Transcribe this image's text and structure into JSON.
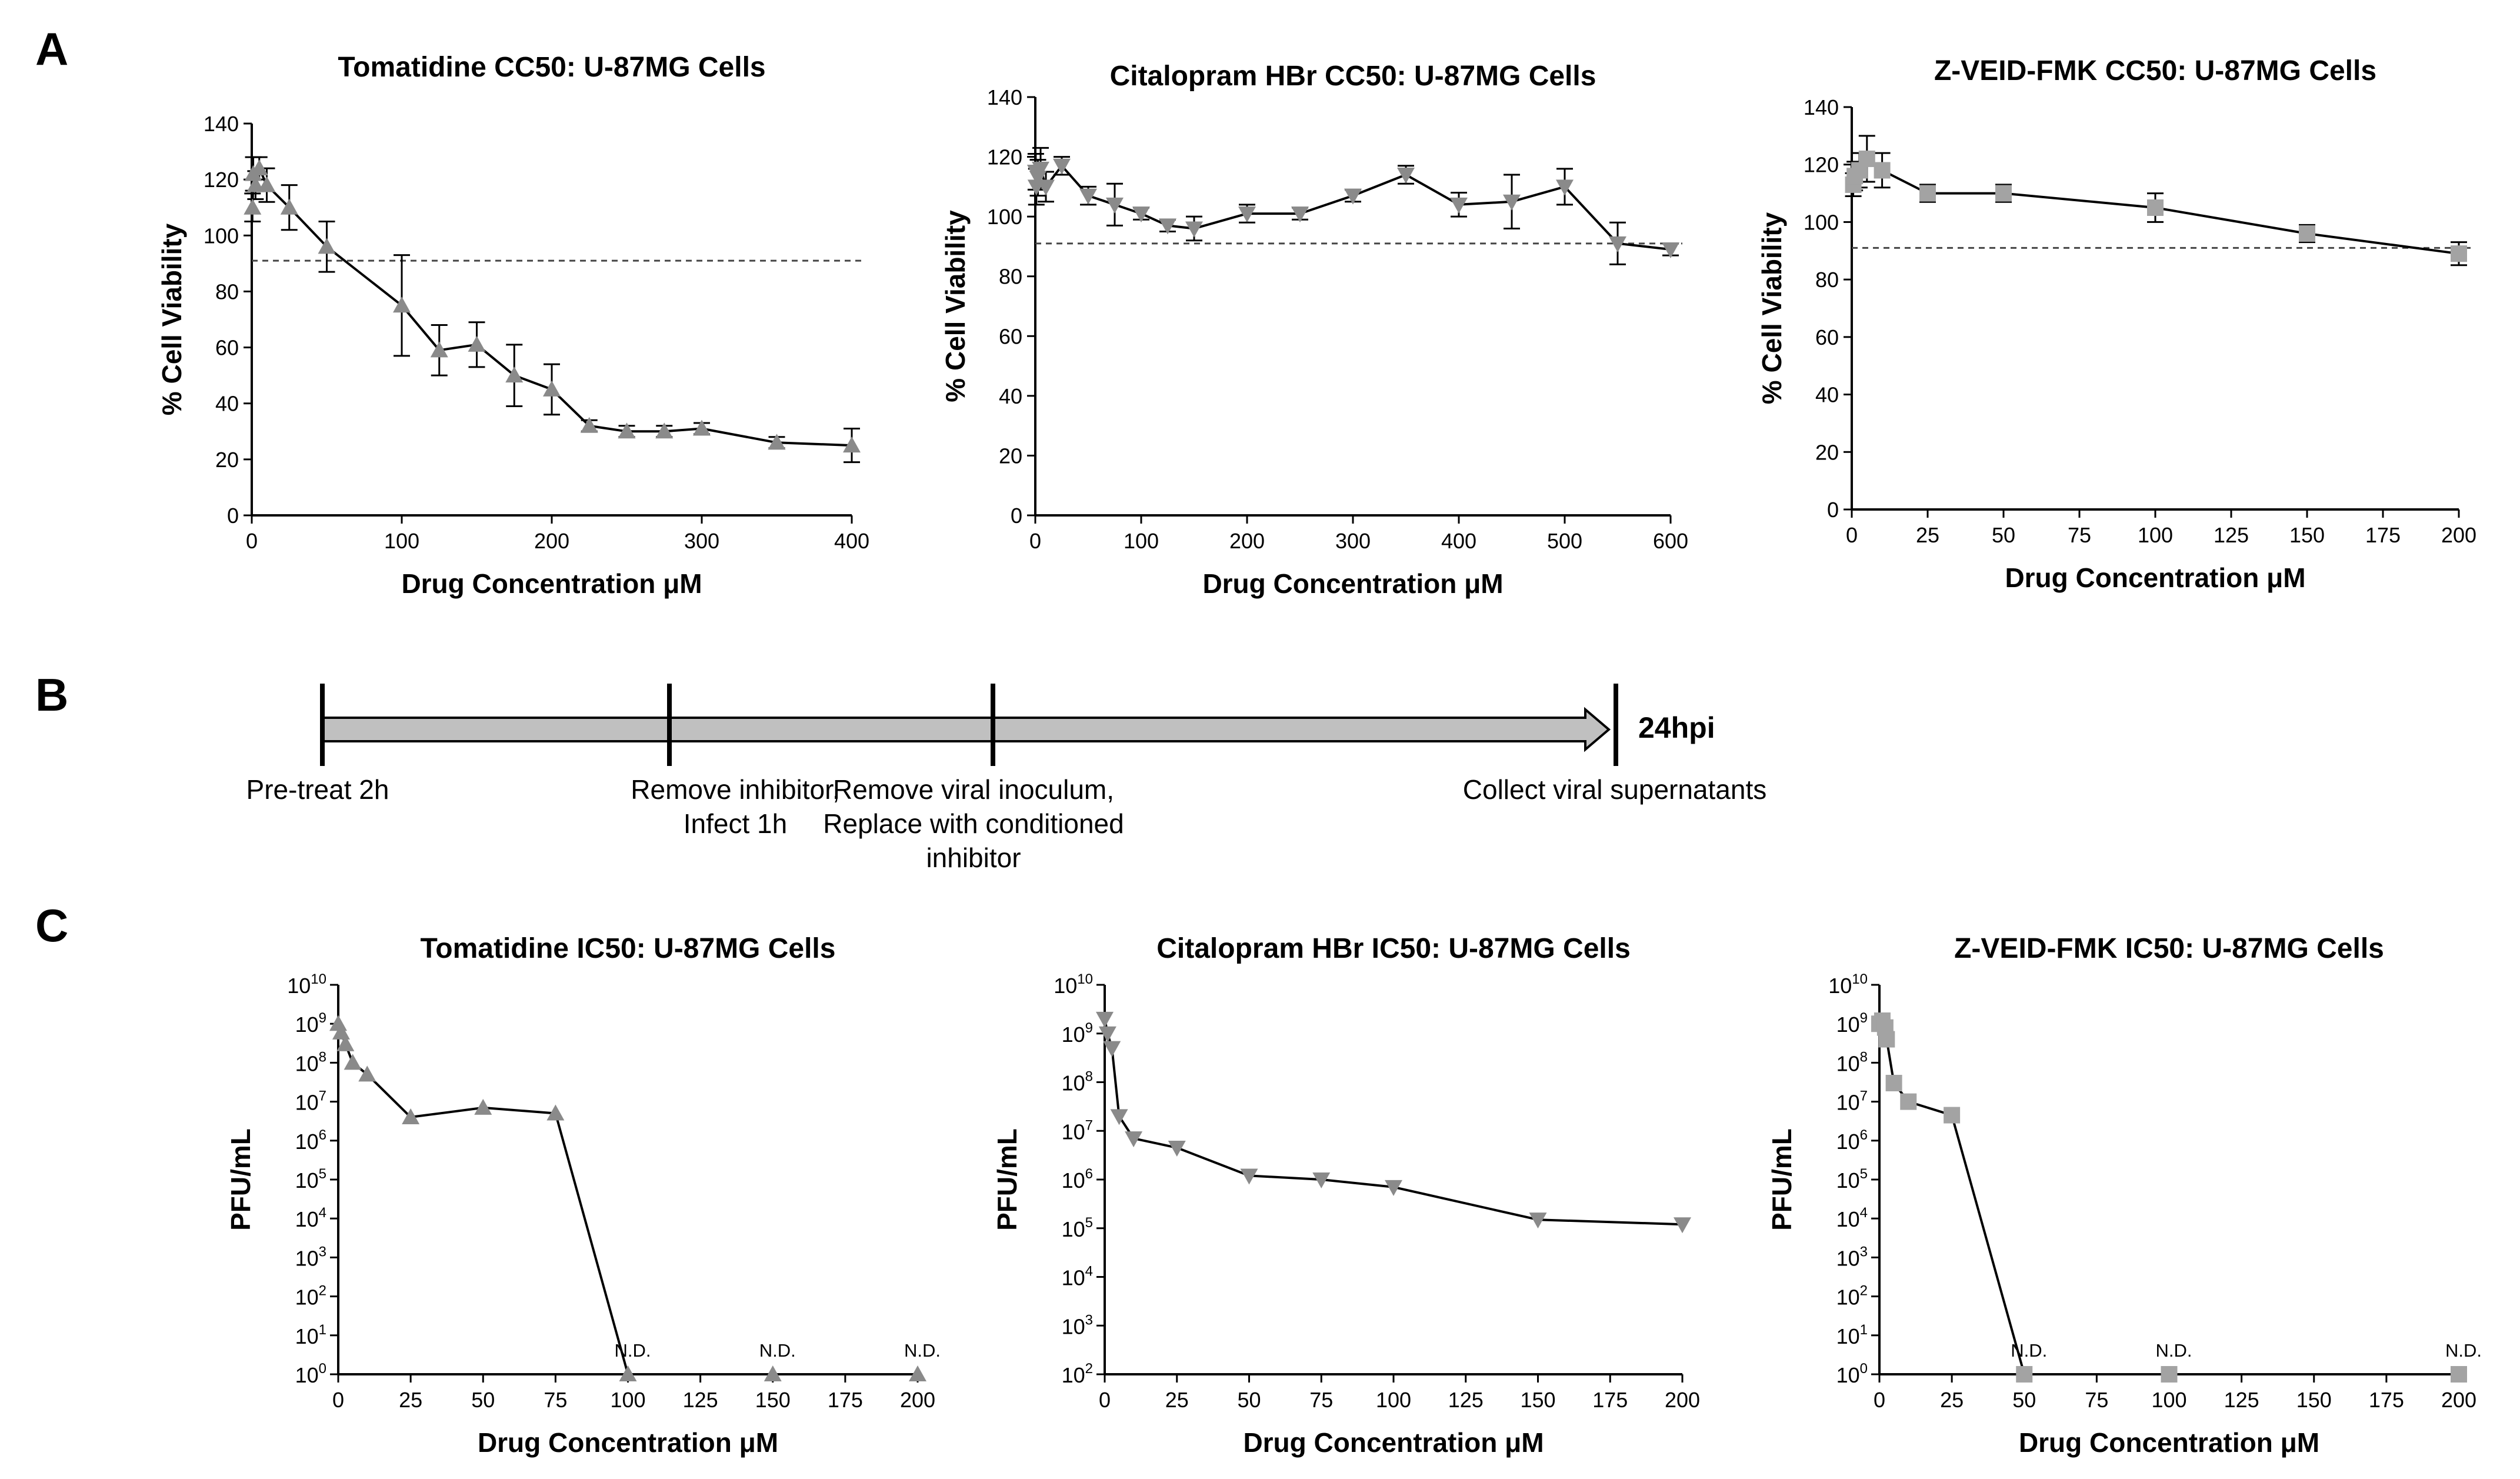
{
  "panels": {
    "a": "A",
    "b": "B",
    "c": "C"
  },
  "colors": {
    "marker": "#8a8a8a",
    "marker_light": "#a3a3a3",
    "line": "#000000",
    "threshold": "#444444",
    "arrow_fill": "#c0c0c0"
  },
  "timeline": {
    "end_label": "24hpi",
    "steps": [
      {
        "lines": [
          "Pre-treat 2h"
        ]
      },
      {
        "lines": [
          "Remove inhibitor,",
          "Infect 1h"
        ]
      },
      {
        "lines": [
          "Remove viral inoculum,",
          "Replace with conditioned",
          "inhibitor"
        ]
      },
      {
        "lines": [
          "Collect viral supernatants"
        ]
      }
    ]
  },
  "chart_data": [
    {
      "type": "line",
      "title": "Tomatidine CC50: U-87MG Cells",
      "xlabel": "Drug Concentration μM",
      "ylabel": "% Cell Viability",
      "xlim": [
        0,
        400
      ],
      "ylim": [
        0,
        140
      ],
      "xticks": [
        0,
        100,
        200,
        300,
        400
      ],
      "yticks": [
        0,
        20,
        40,
        60,
        80,
        100,
        120,
        140
      ],
      "marker": "triangle-up",
      "threshold": 91,
      "x": [
        0.5,
        1,
        2.5,
        5,
        10,
        25,
        50,
        100,
        125,
        150,
        175,
        200,
        225,
        250,
        275,
        300,
        350,
        400
      ],
      "y": [
        110,
        122,
        118,
        124,
        118,
        110,
        96,
        75,
        59,
        61,
        50,
        45,
        32,
        30,
        30,
        31,
        26,
        25
      ],
      "error": [
        5,
        6,
        5,
        4,
        6,
        8,
        9,
        18,
        9,
        8,
        11,
        9,
        2,
        2,
        2,
        2,
        2,
        6
      ]
    },
    {
      "type": "line",
      "title": "Citalopram HBr CC50: U-87MG Cells",
      "xlabel": "Drug Concentration μM",
      "ylabel": "% Cell Viability",
      "xlim": [
        0,
        600
      ],
      "ylim": [
        0,
        140
      ],
      "xticks": [
        0,
        100,
        200,
        300,
        400,
        500,
        600
      ],
      "yticks": [
        0,
        20,
        40,
        60,
        80,
        100,
        120,
        140
      ],
      "marker": "triangle-down",
      "threshold": 91,
      "x": [
        0.5,
        1,
        2.5,
        5,
        10,
        25,
        50,
        75,
        100,
        125,
        150,
        200,
        250,
        300,
        350,
        400,
        450,
        500,
        550,
        600
      ],
      "y": [
        115,
        110,
        113,
        116,
        110,
        117,
        107,
        104,
        101,
        97,
        96,
        101,
        101,
        107,
        114,
        104,
        105,
        110,
        91,
        89
      ],
      "error": [
        6,
        6,
        6,
        7,
        5,
        3,
        3,
        7,
        2,
        2,
        4,
        3,
        2,
        2,
        3,
        4,
        9,
        6,
        7,
        2
      ]
    },
    {
      "type": "line",
      "title": "Z-VEID-FMK CC50: U-87MG Cells",
      "xlabel": "Drug Concentration μM",
      "ylabel": "% Cell Viability",
      "xlim": [
        0,
        200
      ],
      "ylim": [
        0,
        140
      ],
      "xticks": [
        0,
        25,
        50,
        75,
        100,
        125,
        150,
        175,
        200
      ],
      "yticks": [
        0,
        20,
        40,
        60,
        80,
        100,
        120,
        140
      ],
      "marker": "square",
      "threshold": 91,
      "x": [
        0.5,
        1,
        2.5,
        5,
        10,
        25,
        50,
        100,
        150,
        200
      ],
      "y": [
        113,
        116,
        118,
        122,
        118,
        110,
        110,
        105,
        96,
        89
      ],
      "error": [
        4,
        5,
        6,
        8,
        6,
        3,
        3,
        5,
        3,
        4
      ]
    },
    {
      "type": "line",
      "title": "Tomatidine IC50: U-87MG Cells",
      "xlabel": "Drug Concentration μM",
      "ylabel": "PFU/mL",
      "y_scale": "log",
      "xlim": [
        0,
        200
      ],
      "ylim": [
        1,
        10000000000
      ],
      "xticks": [
        0,
        25,
        50,
        75,
        100,
        125,
        150,
        175,
        200
      ],
      "ytick_exponents": [
        0,
        1,
        2,
        3,
        4,
        5,
        6,
        7,
        8,
        9,
        10
      ],
      "marker": "triangle-up",
      "x": [
        0,
        1,
        2.5,
        5,
        10,
        25,
        50,
        75,
        100,
        150,
        200
      ],
      "y": [
        1000000000,
        600000000,
        300000000,
        100000000,
        50000000,
        4000000,
        7000000,
        5000000,
        1,
        1,
        1
      ],
      "annotations": [
        {
          "x": 100,
          "text": "N.D."
        },
        {
          "x": 150,
          "text": "N.D."
        },
        {
          "x": 200,
          "text": "N.D."
        }
      ]
    },
    {
      "type": "line",
      "title": "Citalopram HBr IC50: U-87MG Cells",
      "xlabel": "Drug Concentration μM",
      "ylabel": "PFU/mL",
      "y_scale": "log",
      "xlim": [
        0,
        200
      ],
      "ylim": [
        100,
        10000000000
      ],
      "xticks": [
        0,
        25,
        50,
        75,
        100,
        125,
        150,
        175,
        200
      ],
      "ytick_exponents": [
        2,
        3,
        4,
        5,
        6,
        7,
        8,
        9,
        10
      ],
      "marker": "triangle-down",
      "x": [
        0,
        1,
        2.5,
        5,
        10,
        25,
        50,
        75,
        100,
        150,
        200
      ],
      "y": [
        2000000000,
        1000000000,
        500000000,
        20000000,
        7000000,
        4500000,
        1200000,
        1000000,
        700000,
        150000,
        120000
      ]
    },
    {
      "type": "line",
      "title": "Z-VEID-FMK IC50: U-87MG Cells",
      "xlabel": "Drug Concentration μM",
      "ylabel": "PFU/mL",
      "y_scale": "log",
      "xlim": [
        0,
        200
      ],
      "ylim": [
        1,
        10000000000
      ],
      "xticks": [
        0,
        25,
        50,
        75,
        100,
        125,
        150,
        175,
        200
      ],
      "ytick_exponents": [
        0,
        1,
        2,
        3,
        4,
        5,
        6,
        7,
        8,
        9,
        10
      ],
      "marker": "square",
      "x": [
        0,
        1,
        2,
        2.5,
        5,
        10,
        25,
        50,
        100,
        200
      ],
      "y": [
        1000000000,
        1200000000,
        800000000,
        400000000,
        30000000,
        10000000,
        4500000,
        1,
        1,
        1
      ],
      "annotations": [
        {
          "x": 50,
          "text": "N.D."
        },
        {
          "x": 100,
          "text": "N.D."
        },
        {
          "x": 200,
          "text": "N.D."
        }
      ]
    }
  ]
}
